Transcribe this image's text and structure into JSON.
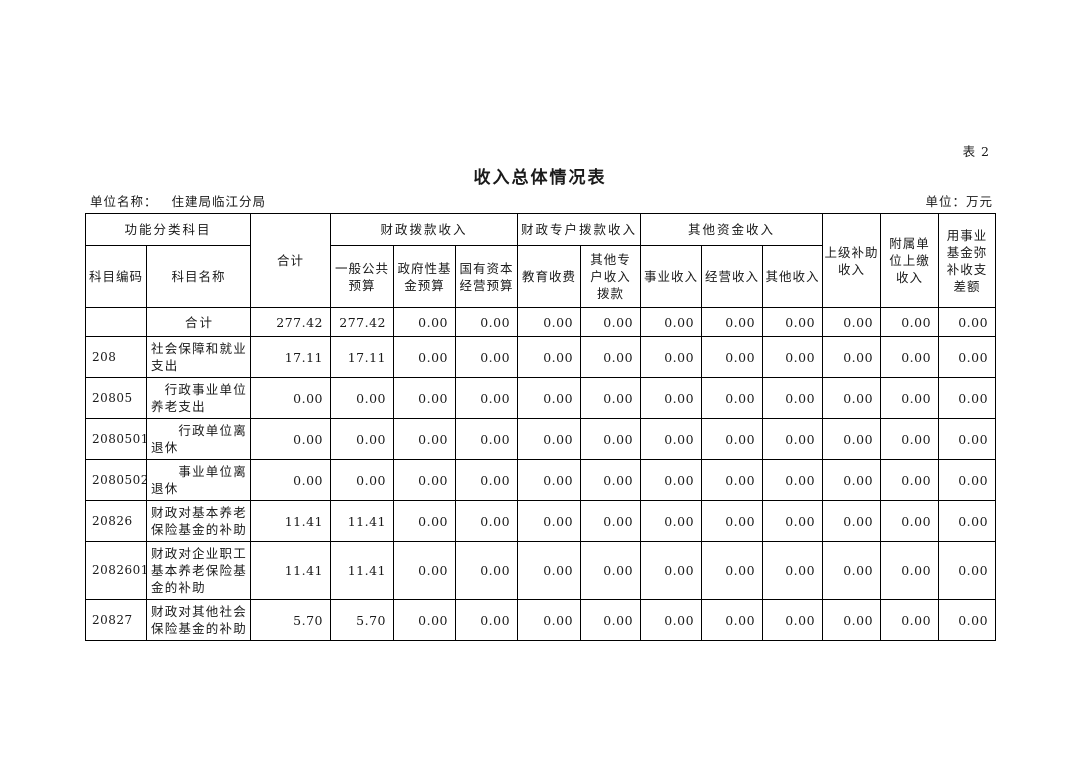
{
  "page": {
    "sheet_label": "表 2",
    "title": "收入总体情况表",
    "unit_name_label": "单位名称：",
    "unit_name_value": "住建局临江分局",
    "unit_of_measure": "单位：万元"
  },
  "table": {
    "headers": {
      "function_group": "功能分类科目",
      "code": "科目编码",
      "name": "科目名称",
      "total": "合计",
      "fiscal_appropriation_group": "财政拨款收入",
      "general_public_budget": "一般公共\n预算",
      "gov_fund_budget": "政府性基\n金预算",
      "state_capital_budget": "国有资本\n经营预算",
      "special_account_group": "财政专户拨款收入",
      "education_fees": "教育收费",
      "other_special_account": "其他专\n户收入\n拨款",
      "other_funds_group": "其他资金收入",
      "business_income": "事业收入",
      "operating_income": "经营收入",
      "other_income": "其他收入",
      "higher_level_subsidy": "上级补助\n收入",
      "affiliated_unit_payment": "附属单\n位上缴\n收入",
      "fund_deficit_offset": "用事业\n基金弥\n补收支\n差额"
    },
    "rows": [
      {
        "code": "",
        "name": "合计",
        "name_centered": true,
        "values": [
          "277.42",
          "277.42",
          "0.00",
          "0.00",
          "0.00",
          "0.00",
          "0.00",
          "0.00",
          "0.00",
          "0.00",
          "0.00",
          "0.00"
        ]
      },
      {
        "code": "208",
        "name": "社会保障和就业\n支出",
        "name_centered": false,
        "values": [
          "17.11",
          "17.11",
          "0.00",
          "0.00",
          "0.00",
          "0.00",
          "0.00",
          "0.00",
          "0.00",
          "0.00",
          "0.00",
          "0.00"
        ]
      },
      {
        "code": "20805",
        "name": "　行政事业单位\n养老支出",
        "name_centered": false,
        "values": [
          "0.00",
          "0.00",
          "0.00",
          "0.00",
          "0.00",
          "0.00",
          "0.00",
          "0.00",
          "0.00",
          "0.00",
          "0.00",
          "0.00"
        ]
      },
      {
        "code": "2080501",
        "name": "　　行政单位离\n退休",
        "name_centered": false,
        "values": [
          "0.00",
          "0.00",
          "0.00",
          "0.00",
          "0.00",
          "0.00",
          "0.00",
          "0.00",
          "0.00",
          "0.00",
          "0.00",
          "0.00"
        ]
      },
      {
        "code": "2080502",
        "name": "　　事业单位离\n退休",
        "name_centered": false,
        "values": [
          "0.00",
          "0.00",
          "0.00",
          "0.00",
          "0.00",
          "0.00",
          "0.00",
          "0.00",
          "0.00",
          "0.00",
          "0.00",
          "0.00"
        ]
      },
      {
        "code": "20826",
        "name": "财政对基本养老\n保险基金的补助",
        "name_centered": false,
        "values": [
          "11.41",
          "11.41",
          "0.00",
          "0.00",
          "0.00",
          "0.00",
          "0.00",
          "0.00",
          "0.00",
          "0.00",
          "0.00",
          "0.00"
        ]
      },
      {
        "code": "2082601",
        "name": "财政对企业职工\n基本养老保险基\n金的补助",
        "name_centered": false,
        "values": [
          "11.41",
          "11.41",
          "0.00",
          "0.00",
          "0.00",
          "0.00",
          "0.00",
          "0.00",
          "0.00",
          "0.00",
          "0.00",
          "0.00"
        ]
      },
      {
        "code": "20827",
        "name": "财政对其他社会\n保险基金的补助",
        "name_centered": false,
        "values": [
          "5.70",
          "5.70",
          "0.00",
          "0.00",
          "0.00",
          "0.00",
          "0.00",
          "0.00",
          "0.00",
          "0.00",
          "0.00",
          "0.00"
        ]
      }
    ]
  }
}
